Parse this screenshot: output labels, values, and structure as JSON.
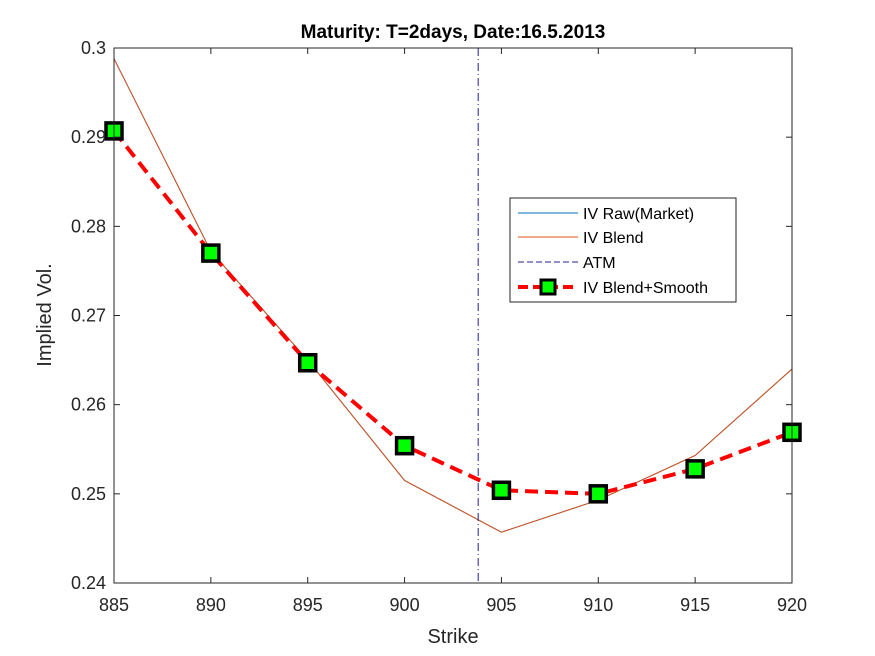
{
  "chart_data": {
    "type": "line",
    "title": "Maturity: T=2days, Date:16.5.2013",
    "xlabel": "Strike",
    "ylabel": "Implied Vol.",
    "xlim": [
      885,
      920
    ],
    "ylim": [
      0.24,
      0.3
    ],
    "x_ticks": [
      "885",
      "890",
      "895",
      "900",
      "905",
      "910",
      "915",
      "920"
    ],
    "y_ticks": [
      "0.24",
      "0.25",
      "0.26",
      "0.27",
      "0.28",
      "0.29",
      "0.3"
    ],
    "grid": false,
    "legend_position": "right",
    "atm_strike": 903.8,
    "series": [
      {
        "name": "IV Raw(Market)",
        "color": "#0072BD",
        "style": "solid",
        "x": [
          885,
          890,
          895,
          900,
          905,
          910,
          915,
          920
        ],
        "values": [
          0.2988,
          0.2772,
          0.265,
          0.2515,
          0.2457,
          0.2493,
          0.2543,
          0.264
        ]
      },
      {
        "name": "IV Blend",
        "color": "#D95319",
        "style": "solid",
        "x": [
          885,
          890,
          895,
          900,
          905,
          910,
          915,
          920
        ],
        "values": [
          0.2988,
          0.2772,
          0.265,
          0.2515,
          0.2457,
          0.2493,
          0.2543,
          0.264
        ]
      },
      {
        "name": "ATM",
        "color": "#1f1f9a",
        "style": "dash-dot"
      },
      {
        "name": "IV Blend+Smooth",
        "color": "#FF0000",
        "marker_fill": "#00FF00",
        "marker_edge": "#000000",
        "style": "dashed",
        "marker": "square",
        "x": [
          885,
          890,
          895,
          900,
          905,
          910,
          915,
          920
        ],
        "values": [
          0.2907,
          0.277,
          0.2647,
          0.2554,
          0.2504,
          0.25,
          0.2528,
          0.2569
        ]
      }
    ]
  }
}
